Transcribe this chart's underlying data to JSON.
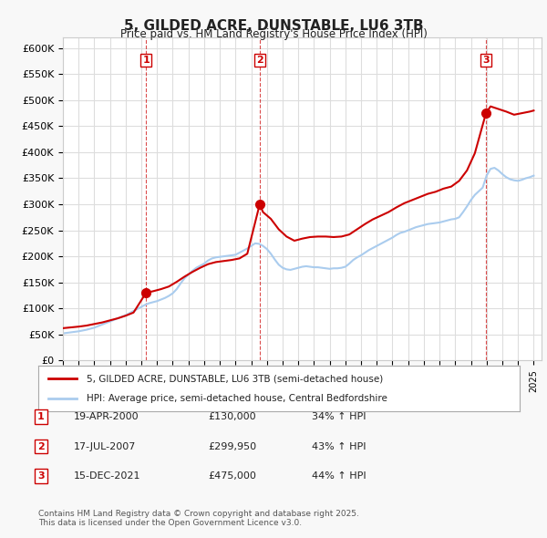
{
  "title": "5, GILDED ACRE, DUNSTABLE, LU6 3TB",
  "subtitle": "Price paid vs. HM Land Registry's House Price Index (HPI)",
  "ylabel_ticks": [
    "£0",
    "£50K",
    "£100K",
    "£150K",
    "£200K",
    "£250K",
    "£300K",
    "£350K",
    "£400K",
    "£450K",
    "£500K",
    "£550K",
    "£600K"
  ],
  "ytick_vals": [
    0,
    50000,
    100000,
    150000,
    200000,
    250000,
    300000,
    350000,
    400000,
    450000,
    500000,
    550000,
    600000
  ],
  "ylim": [
    0,
    620000
  ],
  "xlim_start": 1995.0,
  "xlim_end": 2025.5,
  "background_color": "#f8f8f8",
  "plot_bg_color": "#ffffff",
  "grid_color": "#dddddd",
  "sale_color": "#cc0000",
  "hpi_color": "#aaccee",
  "marker_color": "#cc0000",
  "sale_label": "5, GILDED ACRE, DUNSTABLE, LU6 3TB (semi-detached house)",
  "hpi_label": "HPI: Average price, semi-detached house, Central Bedfordshire",
  "transactions": [
    {
      "num": 1,
      "date_label": "19-APR-2000",
      "year": 2000.3,
      "price": 130000,
      "pct": "34% ↑ HPI"
    },
    {
      "num": 2,
      "date_label": "17-JUL-2007",
      "year": 2007.54,
      "price": 299950,
      "pct": "43% ↑ HPI"
    },
    {
      "num": 3,
      "date_label": "15-DEC-2021",
      "year": 2021.96,
      "price": 475000,
      "pct": "44% ↑ HPI"
    }
  ],
  "footnote": "Contains HM Land Registry data © Crown copyright and database right 2025.\nThis data is licensed under the Open Government Licence v3.0.",
  "hpi_data_x": [
    1995.0,
    1995.25,
    1995.5,
    1995.75,
    1996.0,
    1996.25,
    1996.5,
    1996.75,
    1997.0,
    1997.25,
    1997.5,
    1997.75,
    1998.0,
    1998.25,
    1998.5,
    1998.75,
    1999.0,
    1999.25,
    1999.5,
    1999.75,
    2000.0,
    2000.25,
    2000.5,
    2000.75,
    2001.0,
    2001.25,
    2001.5,
    2001.75,
    2002.0,
    2002.25,
    2002.5,
    2002.75,
    2003.0,
    2003.25,
    2003.5,
    2003.75,
    2004.0,
    2004.25,
    2004.5,
    2004.75,
    2005.0,
    2005.25,
    2005.5,
    2005.75,
    2006.0,
    2006.25,
    2006.5,
    2006.75,
    2007.0,
    2007.25,
    2007.5,
    2007.75,
    2008.0,
    2008.25,
    2008.5,
    2008.75,
    2009.0,
    2009.25,
    2009.5,
    2009.75,
    2010.0,
    2010.25,
    2010.5,
    2010.75,
    2011.0,
    2011.25,
    2011.5,
    2011.75,
    2012.0,
    2012.25,
    2012.5,
    2012.75,
    2013.0,
    2013.25,
    2013.5,
    2013.75,
    2014.0,
    2014.25,
    2014.5,
    2014.75,
    2015.0,
    2015.25,
    2015.5,
    2015.75,
    2016.0,
    2016.25,
    2016.5,
    2016.75,
    2017.0,
    2017.25,
    2017.5,
    2017.75,
    2018.0,
    2018.25,
    2018.5,
    2018.75,
    2019.0,
    2019.25,
    2019.5,
    2019.75,
    2020.0,
    2020.25,
    2020.5,
    2020.75,
    2021.0,
    2021.25,
    2021.5,
    2021.75,
    2022.0,
    2022.25,
    2022.5,
    2022.75,
    2023.0,
    2023.25,
    2023.5,
    2023.75,
    2024.0,
    2024.25,
    2024.5,
    2024.75,
    2025.0
  ],
  "hpi_data_y": [
    52000,
    53000,
    54000,
    55000,
    56000,
    57500,
    59000,
    61000,
    63000,
    66000,
    69000,
    72000,
    75000,
    78000,
    81000,
    84000,
    87000,
    91000,
    95000,
    99000,
    103000,
    107000,
    110000,
    112000,
    114000,
    117000,
    120000,
    124000,
    129000,
    137000,
    148000,
    158000,
    165000,
    172000,
    178000,
    182000,
    186000,
    192000,
    196000,
    198000,
    199000,
    200000,
    201000,
    202000,
    203000,
    207000,
    211000,
    215000,
    220000,
    225000,
    224000,
    220000,
    214000,
    205000,
    194000,
    184000,
    178000,
    175000,
    174000,
    176000,
    178000,
    180000,
    181000,
    180000,
    179000,
    179000,
    178000,
    177000,
    176000,
    177000,
    177000,
    178000,
    180000,
    186000,
    193000,
    198000,
    202000,
    207000,
    212000,
    216000,
    220000,
    224000,
    228000,
    232000,
    236000,
    241000,
    245000,
    247000,
    250000,
    253000,
    256000,
    258000,
    260000,
    262000,
    263000,
    264000,
    265000,
    267000,
    269000,
    271000,
    272000,
    275000,
    285000,
    296000,
    308000,
    318000,
    325000,
    332000,
    355000,
    368000,
    370000,
    365000,
    358000,
    352000,
    348000,
    346000,
    345000,
    347000,
    350000,
    352000,
    355000
  ],
  "sale_data_x": [
    1995.0,
    1995.5,
    1996.0,
    1996.5,
    1997.0,
    1997.5,
    1998.0,
    1998.5,
    1999.0,
    1999.5,
    2000.3,
    2000.75,
    2001.25,
    2001.75,
    2002.25,
    2002.75,
    2003.25,
    2003.75,
    2004.25,
    2004.75,
    2005.25,
    2005.75,
    2006.25,
    2006.75,
    2007.54,
    2007.75,
    2008.25,
    2008.75,
    2009.25,
    2009.75,
    2010.25,
    2010.75,
    2011.25,
    2011.75,
    2012.25,
    2012.75,
    2013.25,
    2013.75,
    2014.25,
    2014.75,
    2015.25,
    2015.75,
    2016.25,
    2016.75,
    2017.25,
    2017.75,
    2018.25,
    2018.75,
    2019.25,
    2019.75,
    2020.25,
    2020.75,
    2021.25,
    2021.96,
    2022.25,
    2022.75,
    2023.25,
    2023.75,
    2024.25,
    2024.75,
    2025.0
  ],
  "sale_data_y": [
    62000,
    63500,
    65000,
    67000,
    70000,
    73000,
    77000,
    81000,
    86000,
    92000,
    130000,
    133000,
    137000,
    142000,
    151000,
    161000,
    170000,
    178000,
    185000,
    189000,
    191000,
    193000,
    196000,
    205000,
    299950,
    285000,
    272000,
    252000,
    238000,
    230000,
    234000,
    237000,
    238000,
    238000,
    237000,
    238000,
    242000,
    252000,
    262000,
    271000,
    278000,
    285000,
    294000,
    302000,
    308000,
    314000,
    320000,
    324000,
    330000,
    334000,
    345000,
    365000,
    398000,
    475000,
    488000,
    483000,
    478000,
    472000,
    475000,
    478000,
    480000
  ]
}
